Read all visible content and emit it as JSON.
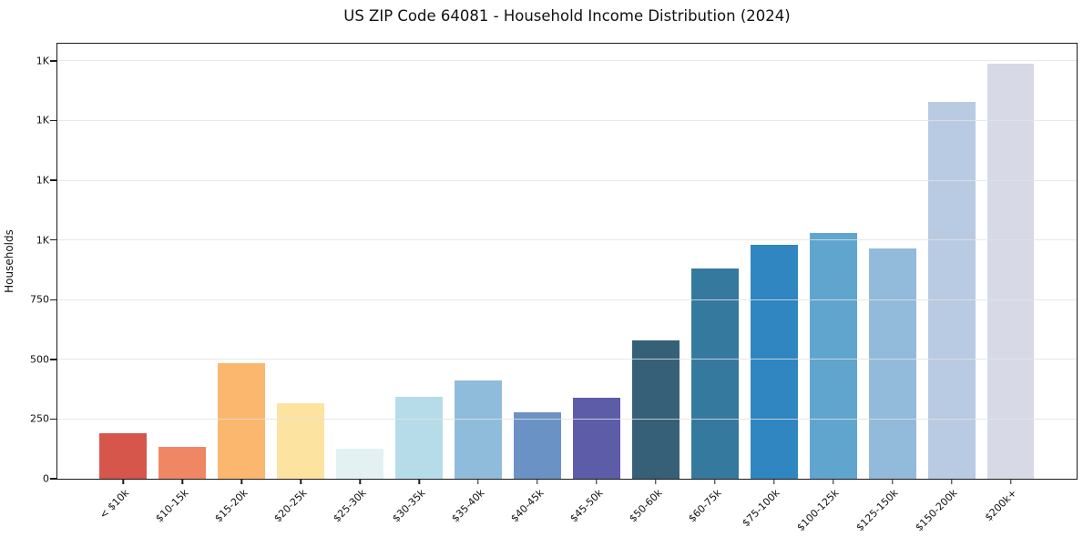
{
  "chart_data": {
    "type": "bar",
    "title": "US ZIP Code 64081 - Household Income Distribution (2024)",
    "xlabel": "",
    "ylabel": "Households",
    "ylim": [
      0,
      1822
    ],
    "grid": "horizontal",
    "legend_position": "none",
    "categories": [
      "< $10k",
      "$10-15k",
      "$15-20k",
      "$20-25k",
      "$25-30k",
      "$30-35k",
      "$35-40k",
      "$40-45k",
      "$45-50k",
      "$50-60k",
      "$60-75k",
      "$75-100k",
      "$100-125k",
      "$125-150k",
      "$150-200k",
      "$200k+"
    ],
    "values": [
      190,
      135,
      485,
      315,
      125,
      345,
      410,
      280,
      340,
      580,
      880,
      980,
      1030,
      965,
      1580,
      1740
    ],
    "bar_colors": [
      "#d6564c",
      "#ef8764",
      "#fbb76d",
      "#fde3a0",
      "#e4f1f2",
      "#b6dcea",
      "#90bcdc",
      "#6b92c4",
      "#5c5ca9",
      "#356077",
      "#35799f",
      "#2f86c0",
      "#5fa5ce",
      "#92badb",
      "#b9cae3",
      "#d7d9e7"
    ],
    "yticks": [
      {
        "value": 0,
        "label": "0"
      },
      {
        "value": 250,
        "label": "250"
      },
      {
        "value": 500,
        "label": "500"
      },
      {
        "value": 750,
        "label": "750"
      },
      {
        "value": 1000,
        "label": "1K"
      },
      {
        "value": 1250,
        "label": "1K"
      },
      {
        "value": 1500,
        "label": "1K"
      },
      {
        "value": 1750,
        "label": "1K"
      }
    ],
    "axis_color": "#1c1c1c",
    "gridline_color": "rgba(226,226,226,0.8)",
    "background": "#ffffff"
  }
}
